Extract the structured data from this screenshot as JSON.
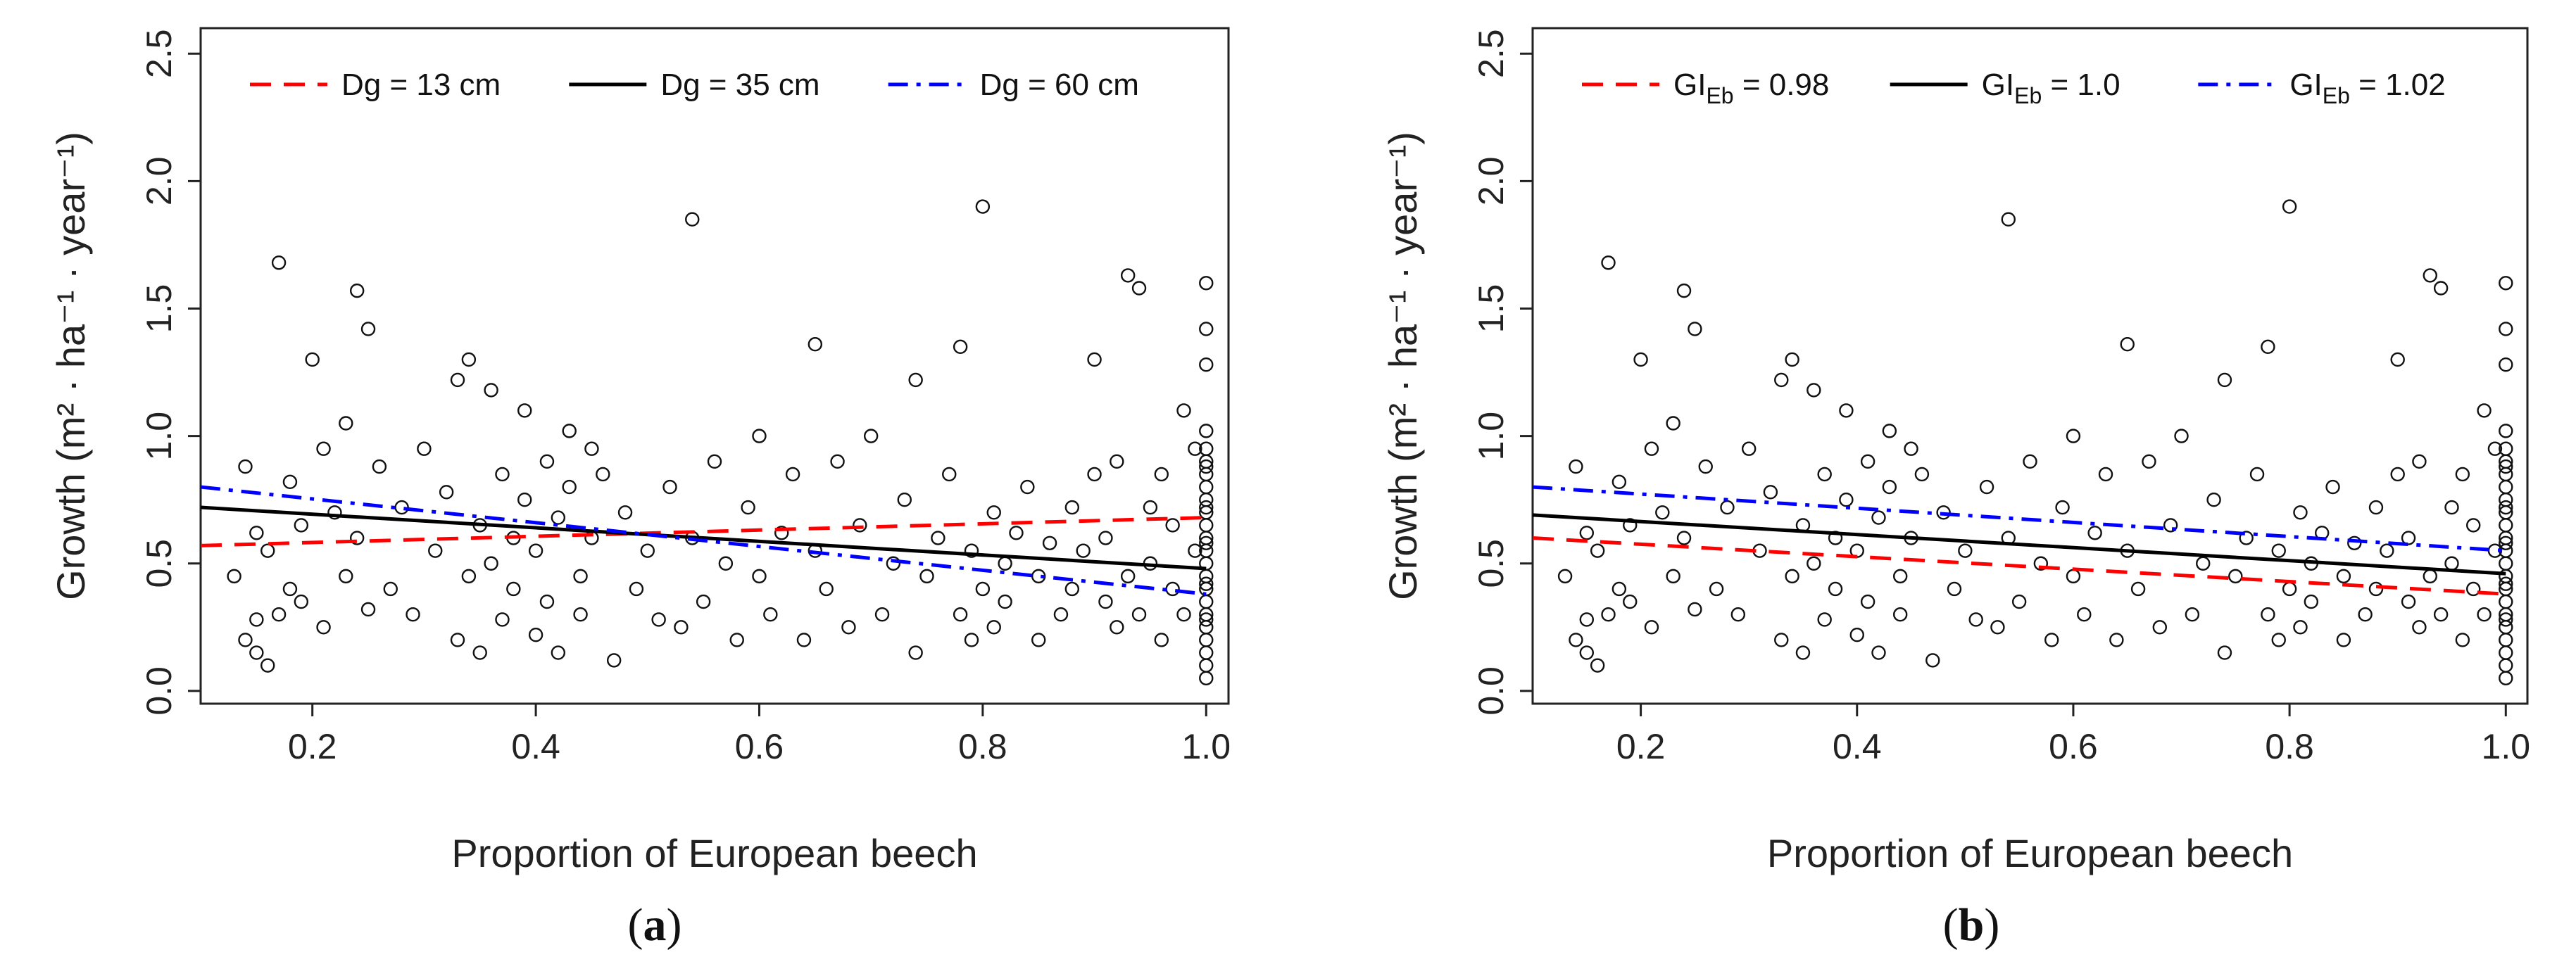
{
  "chart_data": [
    {
      "type": "scatter",
      "panel_label": "(a)",
      "panel_letter": "a",
      "xlabel": "Proportion of European beech",
      "ylabel": "Growth (m² · ha⁻¹ · year⁻¹)",
      "xlim": [
        0.1,
        1.02
      ],
      "ylim": [
        -0.05,
        2.6
      ],
      "xticks": [
        0.2,
        0.4,
        0.6,
        0.8,
        1.0
      ],
      "xtick_labels": [
        "0.2",
        "0.4",
        "0.6",
        "0.8",
        "1.0"
      ],
      "yticks": [
        0.0,
        0.5,
        1.0,
        1.5,
        2.0,
        2.5
      ],
      "ytick_labels": [
        "0.0",
        "0.5",
        "1.0",
        "1.5",
        "2.0",
        "2.5"
      ],
      "legend_position": "top",
      "series": [
        {
          "name": "Dg = 13 cm",
          "label_main": "Dg = 13 cm",
          "label_sub": "",
          "label_tail": "",
          "color": "#ff0000",
          "dash": "dashed",
          "x": [
            0.1,
            1.0
          ],
          "y": [
            0.57,
            0.68
          ]
        },
        {
          "name": "Dg = 35 cm",
          "label_main": "Dg = 35 cm",
          "label_sub": "",
          "label_tail": "",
          "color": "#000000",
          "dash": "solid",
          "x": [
            0.1,
            1.0
          ],
          "y": [
            0.72,
            0.48
          ]
        },
        {
          "name": "Dg = 60 cm",
          "label_main": "Dg = 60 cm",
          "label_sub": "",
          "label_tail": "",
          "color": "#0000ff",
          "dash": "dotdash",
          "x": [
            0.1,
            1.0
          ],
          "y": [
            0.8,
            0.38
          ]
        }
      ]
    },
    {
      "type": "scatter",
      "panel_label": "(b)",
      "panel_letter": "b",
      "xlabel": "Proportion of European beech",
      "ylabel": "Growth (m² · ha⁻¹ · year⁻¹)",
      "xlim": [
        0.1,
        1.02
      ],
      "ylim": [
        -0.05,
        2.6
      ],
      "xticks": [
        0.2,
        0.4,
        0.6,
        0.8,
        1.0
      ],
      "xtick_labels": [
        "0.2",
        "0.4",
        "0.6",
        "0.8",
        "1.0"
      ],
      "yticks": [
        0.0,
        0.5,
        1.0,
        1.5,
        2.0,
        2.5
      ],
      "ytick_labels": [
        "0.0",
        "0.5",
        "1.0",
        "1.5",
        "2.0",
        "2.5"
      ],
      "legend_position": "top",
      "series": [
        {
          "name": "GIEb = 0.98",
          "label_main": "GI",
          "label_sub": "Eb",
          "label_tail": " = 0.98",
          "color": "#ff0000",
          "dash": "dashed",
          "x": [
            0.1,
            1.0
          ],
          "y": [
            0.6,
            0.38
          ]
        },
        {
          "name": "GIEb = 1.0",
          "label_main": "GI",
          "label_sub": "Eb",
          "label_tail": " = 1.0",
          "color": "#000000",
          "dash": "solid",
          "x": [
            0.1,
            1.0
          ],
          "y": [
            0.69,
            0.46
          ]
        },
        {
          "name": "GIEb = 1.02",
          "label_main": "GI",
          "label_sub": "Eb",
          "label_tail": " = 1.02",
          "color": "#0000ff",
          "dash": "dotdash",
          "x": [
            0.1,
            1.0
          ],
          "y": [
            0.8,
            0.55
          ]
        }
      ]
    }
  ],
  "observations": {
    "x": [
      0.13,
      0.14,
      0.14,
      0.15,
      0.15,
      0.15,
      0.16,
      0.16,
      0.17,
      0.17,
      0.18,
      0.18,
      0.19,
      0.19,
      0.2,
      0.21,
      0.21,
      0.22,
      0.23,
      0.23,
      0.24,
      0.24,
      0.25,
      0.25,
      0.26,
      0.27,
      0.28,
      0.29,
      0.3,
      0.31,
      0.32,
      0.33,
      0.33,
      0.34,
      0.34,
      0.35,
      0.35,
      0.36,
      0.36,
      0.37,
      0.37,
      0.38,
      0.38,
      0.39,
      0.39,
      0.4,
      0.4,
      0.41,
      0.41,
      0.42,
      0.42,
      0.43,
      0.43,
      0.44,
      0.44,
      0.45,
      0.45,
      0.46,
      0.47,
      0.48,
      0.49,
      0.5,
      0.51,
      0.52,
      0.53,
      0.54,
      0.54,
      0.55,
      0.56,
      0.57,
      0.58,
      0.59,
      0.6,
      0.6,
      0.61,
      0.62,
      0.63,
      0.64,
      0.65,
      0.65,
      0.66,
      0.67,
      0.68,
      0.69,
      0.7,
      0.71,
      0.72,
      0.73,
      0.74,
      0.74,
      0.75,
      0.76,
      0.77,
      0.78,
      0.78,
      0.79,
      0.79,
      0.8,
      0.8,
      0.81,
      0.81,
      0.82,
      0.82,
      0.83,
      0.84,
      0.85,
      0.85,
      0.86,
      0.87,
      0.88,
      0.88,
      0.89,
      0.9,
      0.9,
      0.91,
      0.91,
      0.92,
      0.92,
      0.93,
      0.93,
      0.94,
      0.94,
      0.95,
      0.95,
      0.96,
      0.96,
      0.97,
      0.97,
      0.98,
      0.98,
      0.99,
      0.99,
      1.0,
      1.0,
      1.0,
      1.0,
      1.0,
      1.0,
      1.0,
      1.0,
      1.0,
      1.0,
      1.0,
      1.0,
      1.0,
      1.0,
      1.0,
      1.0,
      1.0,
      1.0,
      1.0,
      1.0,
      1.0,
      1.0,
      1.0,
      1.0,
      1.0,
      1.0,
      1.0,
      1.0
    ],
    "y": [
      0.45,
      0.88,
      0.2,
      0.15,
      0.62,
      0.28,
      0.1,
      0.55,
      1.68,
      0.3,
      0.4,
      0.82,
      0.65,
      0.35,
      1.3,
      0.95,
      0.25,
      0.7,
      1.05,
      0.45,
      1.57,
      0.6,
      1.42,
      0.32,
      0.88,
      0.4,
      0.72,
      0.3,
      0.95,
      0.55,
      0.78,
      1.22,
      0.2,
      0.45,
      1.3,
      0.65,
      0.15,
      1.18,
      0.5,
      0.85,
      0.28,
      0.6,
      0.4,
      1.1,
      0.75,
      0.22,
      0.55,
      0.9,
      0.35,
      0.68,
      0.15,
      0.8,
      1.02,
      0.45,
      0.3,
      0.95,
      0.6,
      0.85,
      0.12,
      0.7,
      0.4,
      0.55,
      0.28,
      0.8,
      0.25,
      1.85,
      0.6,
      0.35,
      0.9,
      0.5,
      0.2,
      0.72,
      0.45,
      1.0,
      0.3,
      0.62,
      0.85,
      0.2,
      1.36,
      0.55,
      0.4,
      0.9,
      0.25,
      0.65,
      1.0,
      0.3,
      0.5,
      0.75,
      0.15,
      1.22,
      0.45,
      0.6,
      0.85,
      0.3,
      1.35,
      0.55,
      0.2,
      0.4,
      1.9,
      0.7,
      0.25,
      0.5,
      0.35,
      0.62,
      0.8,
      0.2,
      0.45,
      0.58,
      0.3,
      0.72,
      0.4,
      0.55,
      0.85,
      1.3,
      0.35,
      0.6,
      0.25,
      0.9,
      1.63,
      0.45,
      0.3,
      1.58,
      0.72,
      0.5,
      0.2,
      0.85,
      0.4,
      0.65,
      0.3,
      1.1,
      0.55,
      0.95,
      0.05,
      0.1,
      0.15,
      0.2,
      0.28,
      0.35,
      0.42,
      0.5,
      0.58,
      0.65,
      0.72,
      0.8,
      0.88,
      0.95,
      1.02,
      1.28,
      1.42,
      1.6,
      0.4,
      0.3,
      0.6,
      0.7,
      0.85,
      0.9,
      0.25,
      0.45,
      0.55,
      0.75
    ]
  }
}
